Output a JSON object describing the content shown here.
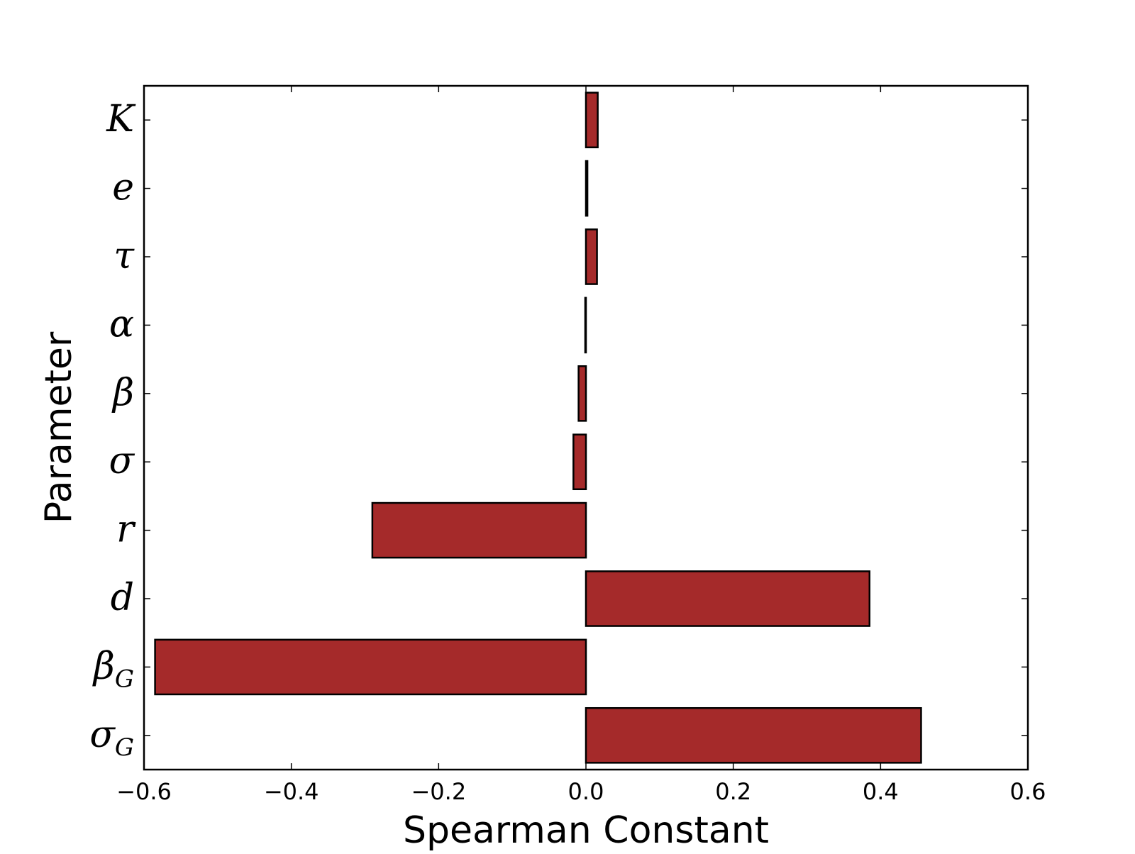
{
  "chart_data": {
    "type": "bar",
    "orientation": "horizontal",
    "title": "",
    "xlabel": "Spearman Constant",
    "ylabel": "Parameter",
    "xlim": [
      -0.6,
      0.6
    ],
    "xticks": [
      "−0.6",
      "−0.4",
      "−0.2",
      "0.0",
      "0.2",
      "0.4",
      "0.6"
    ],
    "xtick_values": [
      -0.6,
      -0.4,
      -0.2,
      0.0,
      0.2,
      0.4,
      0.6
    ],
    "categories": [
      {
        "base": "σ",
        "sub": "G"
      },
      {
        "base": "β",
        "sub": "G"
      },
      {
        "base": "d",
        "sub": ""
      },
      {
        "base": "r",
        "sub": ""
      },
      {
        "base": "σ",
        "sub": ""
      },
      {
        "base": "β",
        "sub": ""
      },
      {
        "base": "α",
        "sub": ""
      },
      {
        "base": "τ",
        "sub": ""
      },
      {
        "base": "e",
        "sub": ""
      },
      {
        "base": "K",
        "sub": ""
      }
    ],
    "values": [
      0.455,
      -0.585,
      0.385,
      -0.29,
      -0.017,
      -0.01,
      -0.001,
      0.015,
      0.002,
      0.016
    ],
    "bar_color": "#a52a2a",
    "edge_color": "#000000",
    "grid": false,
    "legend": "none"
  }
}
